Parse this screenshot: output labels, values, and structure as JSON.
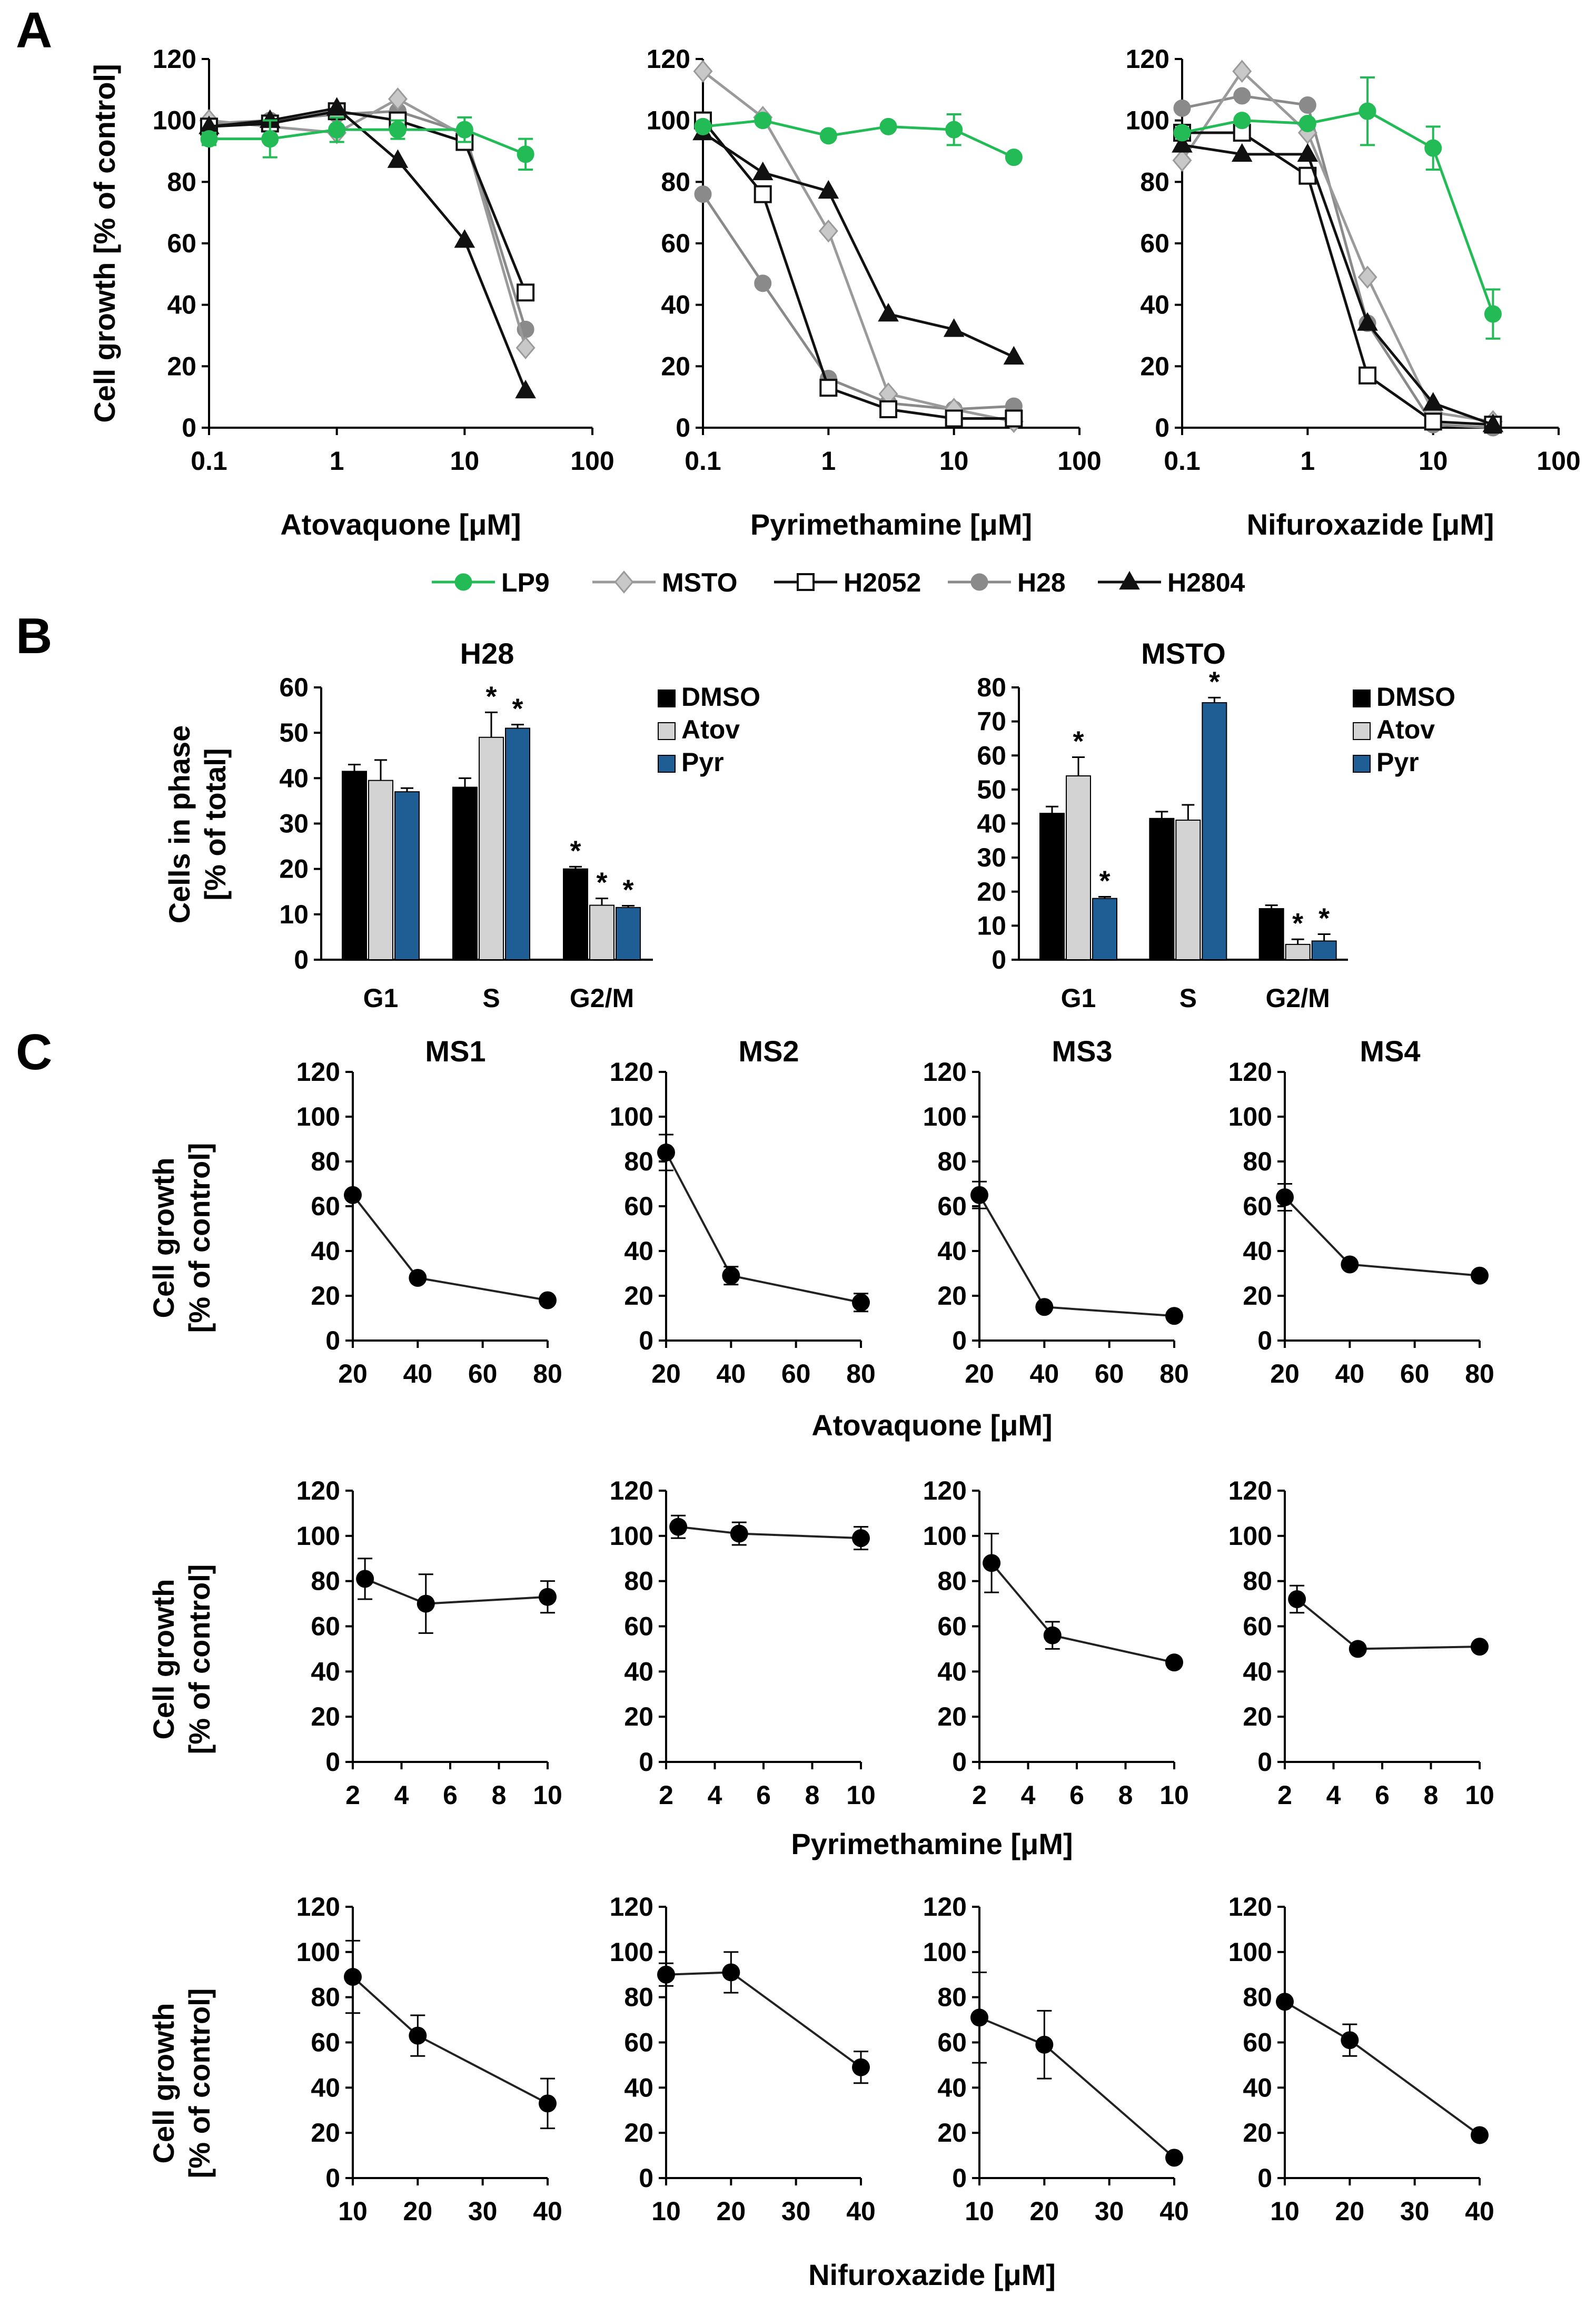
{
  "panels": {
    "A": {
      "label": "A",
      "ylabel": "Cell growth [% of control]",
      "legend": [
        {
          "name": "LP9",
          "color": "#22bb55",
          "marker": "circle",
          "fill": "#22bb55"
        },
        {
          "name": "MSTO",
          "color": "#9a9a9a",
          "marker": "diamond",
          "fill": "#c8c8c8"
        },
        {
          "name": "H2052",
          "color": "#111111",
          "marker": "square",
          "fill": "#ffffff"
        },
        {
          "name": "H28",
          "color": "#8a8a8a",
          "marker": "circle",
          "fill": "#8a8a8a"
        },
        {
          "name": "H2804",
          "color": "#111111",
          "marker": "triangle",
          "fill": "#111111"
        }
      ]
    },
    "B": {
      "label": "B",
      "ylabel_line1": "Cells in phase",
      "ylabel_line2": "[% of total]",
      "legend": [
        {
          "name": "DMSO",
          "color": "#000000"
        },
        {
          "name": "Atov",
          "color": "#d3d3d3"
        },
        {
          "name": "Pyr",
          "color": "#1f5d95"
        }
      ]
    },
    "C": {
      "label": "C",
      "col_titles": [
        "MS1",
        "MS2",
        "MS3",
        "MS4"
      ],
      "ylabel_line1": "Cell growth",
      "ylabel_line2": "[% of control]",
      "row_xlabels": [
        "Atovaquone [μM]",
        "Pyrimethamine [μM]",
        "Nifuroxazide [μM]"
      ]
    }
  },
  "chart_data": [
    {
      "type": "line",
      "panel": "A",
      "xlabel": "Atovaquone [μM]",
      "ylabel": "Cell growth [% of control]",
      "xscale": "log",
      "xlim": [
        0.1,
        100
      ],
      "ylim": [
        0,
        120
      ],
      "xticks": [
        "0.1",
        "1",
        "10",
        "100"
      ],
      "yticks": [
        "0",
        "20",
        "40",
        "60",
        "80",
        "100",
        "120"
      ],
      "x": [
        0.1,
        0.3,
        1,
        3,
        10,
        30
      ],
      "series": [
        {
          "name": "LP9",
          "values": [
            94,
            94,
            97,
            97,
            97,
            89
          ],
          "errors": [
            2,
            6,
            4,
            3,
            4,
            5
          ]
        },
        {
          "name": "MSTO",
          "values": [
            100,
            98,
            96,
            107,
            95,
            26
          ],
          "errors": [
            0,
            0,
            0,
            0,
            0,
            0
          ]
        },
        {
          "name": "H2052",
          "values": [
            98,
            99,
            103,
            100,
            93,
            44
          ],
          "errors": [
            0,
            0,
            0,
            0,
            0,
            0
          ]
        },
        {
          "name": "H28",
          "values": [
            99,
            100,
            102,
            103,
            96,
            32
          ],
          "errors": [
            0,
            0,
            0,
            0,
            0,
            0
          ]
        },
        {
          "name": "H2804",
          "values": [
            98,
            100,
            104,
            87,
            61,
            12
          ],
          "errors": [
            0,
            0,
            0,
            0,
            0,
            0
          ]
        }
      ]
    },
    {
      "type": "line",
      "panel": "A",
      "xlabel": "Pyrimethamine [μM]",
      "xscale": "log",
      "xlim": [
        0.1,
        100
      ],
      "ylim": [
        0,
        120
      ],
      "xticks": [
        "0.1",
        "1",
        "10",
        "100"
      ],
      "yticks": [
        "0",
        "20",
        "40",
        "60",
        "80",
        "100",
        "120"
      ],
      "x": [
        0.1,
        0.3,
        1,
        3,
        10,
        30
      ],
      "series": [
        {
          "name": "LP9",
          "values": [
            98,
            100,
            95,
            98,
            97,
            88
          ],
          "errors": [
            0,
            0,
            0,
            0,
            5,
            0
          ]
        },
        {
          "name": "MSTO",
          "values": [
            116,
            101,
            64,
            11,
            6,
            2
          ],
          "errors": [
            0,
            0,
            0,
            0,
            0,
            0
          ]
        },
        {
          "name": "H2052",
          "values": [
            100,
            76,
            13,
            6,
            3,
            3
          ],
          "errors": [
            0,
            0,
            0,
            0,
            0,
            0
          ]
        },
        {
          "name": "H28",
          "values": [
            76,
            47,
            16,
            8,
            6,
            7
          ],
          "errors": [
            0,
            0,
            0,
            0,
            0,
            0
          ]
        },
        {
          "name": "H2804",
          "values": [
            96,
            83,
            77,
            37,
            32,
            23
          ],
          "errors": [
            0,
            0,
            0,
            0,
            0,
            0
          ]
        }
      ]
    },
    {
      "type": "line",
      "panel": "A",
      "xlabel": "Nifuroxazide [μM]",
      "xscale": "log",
      "xlim": [
        0.1,
        100
      ],
      "ylim": [
        0,
        120
      ],
      "xticks": [
        "0.1",
        "1",
        "10",
        "100"
      ],
      "yticks": [
        "0",
        "20",
        "40",
        "60",
        "80",
        "100",
        "120"
      ],
      "x": [
        0.1,
        0.3,
        1,
        3,
        10,
        30
      ],
      "series": [
        {
          "name": "LP9",
          "values": [
            96,
            100,
            99,
            103,
            91,
            37
          ],
          "errors": [
            0,
            0,
            0,
            11,
            7,
            8
          ]
        },
        {
          "name": "MSTO",
          "values": [
            87,
            116,
            96,
            49,
            5,
            2
          ],
          "errors": [
            0,
            0,
            0,
            0,
            0,
            0
          ]
        },
        {
          "name": "H2052",
          "values": [
            96,
            96,
            82,
            17,
            2,
            1
          ],
          "errors": [
            0,
            0,
            0,
            0,
            0,
            0
          ]
        },
        {
          "name": "H28",
          "values": [
            104,
            108,
            105,
            34,
            1,
            0
          ],
          "errors": [
            0,
            0,
            0,
            0,
            0,
            0
          ]
        },
        {
          "name": "H2804",
          "values": [
            92,
            89,
            89,
            34,
            8,
            1
          ],
          "errors": [
            0,
            0,
            0,
            0,
            0,
            0
          ]
        }
      ]
    },
    {
      "type": "bar",
      "panel": "B",
      "title": "H28",
      "ylabel": "Cells in phase [% of total]",
      "categories": [
        "G1",
        "S",
        "G2/M"
      ],
      "ylim": [
        0,
        60
      ],
      "yticks": [
        "0",
        "10",
        "20",
        "30",
        "40",
        "50",
        "60"
      ],
      "series": [
        {
          "name": "DMSO",
          "values": [
            41.5,
            38,
            20
          ],
          "errors": [
            1.5,
            2,
            0.5
          ]
        },
        {
          "name": "Atov",
          "values": [
            39.5,
            49,
            12
          ],
          "errors": [
            4.5,
            5.5,
            1.5
          ]
        },
        {
          "name": "Pyr",
          "values": [
            37,
            51,
            11.5
          ],
          "errors": [
            0.8,
            0.8,
            0.4
          ]
        }
      ],
      "significance": [
        [
          false,
          false,
          true
        ],
        [
          false,
          true,
          true
        ],
        [
          false,
          true,
          true
        ]
      ]
    },
    {
      "type": "bar",
      "panel": "B",
      "title": "MSTO",
      "categories": [
        "G1",
        "S",
        "G2/M"
      ],
      "ylim": [
        0,
        80
      ],
      "yticks": [
        "0",
        "10",
        "20",
        "30",
        "40",
        "50",
        "60",
        "70",
        "80"
      ],
      "series": [
        {
          "name": "DMSO",
          "values": [
            43,
            41.5,
            15
          ],
          "errors": [
            2,
            2,
            1
          ]
        },
        {
          "name": "Atov",
          "values": [
            54,
            41,
            4.5
          ],
          "errors": [
            5.5,
            4.5,
            1.5
          ]
        },
        {
          "name": "Pyr",
          "values": [
            18,
            75.5,
            5.5
          ],
          "errors": [
            0.5,
            1.5,
            2
          ]
        }
      ],
      "significance": [
        [
          false,
          false,
          false
        ],
        [
          true,
          false,
          true
        ],
        [
          true,
          true,
          true
        ]
      ]
    },
    {
      "type": "line",
      "panel": "C",
      "row": 0,
      "col": 0,
      "title": "MS1",
      "xlabel": "Atovaquone [μM]",
      "xlim": [
        20,
        80
      ],
      "xticks": [
        "20",
        "40",
        "60",
        "80"
      ],
      "ylim": [
        0,
        120
      ],
      "yticks": [
        "0",
        "20",
        "40",
        "60",
        "80",
        "100",
        "120"
      ],
      "x": [
        20,
        40,
        80
      ],
      "values": [
        65,
        28,
        18
      ],
      "errors": [
        2,
        2,
        1
      ]
    },
    {
      "type": "line",
      "panel": "C",
      "row": 0,
      "col": 1,
      "title": "MS2",
      "xlim": [
        20,
        80
      ],
      "xticks": [
        "20",
        "40",
        "60",
        "80"
      ],
      "ylim": [
        0,
        120
      ],
      "yticks": [
        "0",
        "20",
        "40",
        "60",
        "80",
        "100",
        "120"
      ],
      "x": [
        20,
        40,
        80
      ],
      "values": [
        84,
        29,
        17
      ],
      "errors": [
        8,
        4,
        4
      ]
    },
    {
      "type": "line",
      "panel": "C",
      "row": 0,
      "col": 2,
      "title": "MS3",
      "xlim": [
        20,
        80
      ],
      "xticks": [
        "20",
        "40",
        "60",
        "80"
      ],
      "ylim": [
        0,
        120
      ],
      "yticks": [
        "0",
        "20",
        "40",
        "60",
        "80",
        "100",
        "120"
      ],
      "x": [
        20,
        40,
        80
      ],
      "values": [
        65,
        15,
        11
      ],
      "errors": [
        6,
        1,
        1
      ]
    },
    {
      "type": "line",
      "panel": "C",
      "row": 0,
      "col": 3,
      "title": "MS4",
      "xlim": [
        20,
        80
      ],
      "xticks": [
        "20",
        "40",
        "60",
        "80"
      ],
      "ylim": [
        0,
        120
      ],
      "yticks": [
        "0",
        "20",
        "40",
        "60",
        "80",
        "100",
        "120"
      ],
      "x": [
        20,
        40,
        80
      ],
      "values": [
        64,
        34,
        29
      ],
      "errors": [
        6,
        1,
        1
      ]
    },
    {
      "type": "line",
      "panel": "C",
      "row": 1,
      "col": 0,
      "xlabel": "Pyrimethamine [μM]",
      "xlim": [
        2,
        10
      ],
      "xticks": [
        "2",
        "4",
        "6",
        "8",
        "10"
      ],
      "ylim": [
        0,
        120
      ],
      "yticks": [
        "0",
        "20",
        "40",
        "60",
        "80",
        "100",
        "120"
      ],
      "x": [
        2.5,
        5,
        10
      ],
      "values": [
        81,
        70,
        73
      ],
      "errors": [
        9,
        13,
        7
      ]
    },
    {
      "type": "line",
      "panel": "C",
      "row": 1,
      "col": 1,
      "xlim": [
        2,
        10
      ],
      "xticks": [
        "2",
        "4",
        "6",
        "8",
        "10"
      ],
      "ylim": [
        0,
        120
      ],
      "yticks": [
        "0",
        "20",
        "40",
        "60",
        "80",
        "100",
        "120"
      ],
      "x": [
        2.5,
        5,
        10
      ],
      "values": [
        104,
        101,
        99
      ],
      "errors": [
        5,
        5,
        5
      ]
    },
    {
      "type": "line",
      "panel": "C",
      "row": 1,
      "col": 2,
      "xlim": [
        2,
        10
      ],
      "xticks": [
        "2",
        "4",
        "6",
        "8",
        "10"
      ],
      "ylim": [
        0,
        120
      ],
      "yticks": [
        "0",
        "20",
        "40",
        "60",
        "80",
        "100",
        "120"
      ],
      "x": [
        2.5,
        5,
        10
      ],
      "values": [
        88,
        56,
        44
      ],
      "errors": [
        13,
        6,
        2
      ]
    },
    {
      "type": "line",
      "panel": "C",
      "row": 1,
      "col": 3,
      "xlim": [
        2,
        10
      ],
      "xticks": [
        "2",
        "4",
        "6",
        "8",
        "10"
      ],
      "ylim": [
        0,
        120
      ],
      "yticks": [
        "0",
        "20",
        "40",
        "60",
        "80",
        "100",
        "120"
      ],
      "x": [
        2.5,
        5,
        10
      ],
      "values": [
        72,
        50,
        51
      ],
      "errors": [
        6,
        1,
        1
      ]
    },
    {
      "type": "line",
      "panel": "C",
      "row": 2,
      "col": 0,
      "xlabel": "Nifuroxazide [μM]",
      "xlim": [
        10,
        40
      ],
      "xticks": [
        "10",
        "20",
        "30",
        "40"
      ],
      "ylim": [
        0,
        120
      ],
      "yticks": [
        "0",
        "20",
        "40",
        "60",
        "80",
        "100",
        "120"
      ],
      "x": [
        10,
        20,
        40
      ],
      "values": [
        89,
        63,
        33
      ],
      "errors": [
        16,
        9,
        11
      ]
    },
    {
      "type": "line",
      "panel": "C",
      "row": 2,
      "col": 1,
      "xlim": [
        10,
        40
      ],
      "xticks": [
        "10",
        "20",
        "30",
        "40"
      ],
      "ylim": [
        0,
        120
      ],
      "yticks": [
        "0",
        "20",
        "40",
        "60",
        "80",
        "100",
        "120"
      ],
      "x": [
        10,
        20,
        40
      ],
      "values": [
        90,
        91,
        49
      ],
      "errors": [
        5,
        9,
        7
      ]
    },
    {
      "type": "line",
      "panel": "C",
      "row": 2,
      "col": 2,
      "xlim": [
        10,
        40
      ],
      "xticks": [
        "10",
        "20",
        "30",
        "40"
      ],
      "ylim": [
        0,
        120
      ],
      "yticks": [
        "0",
        "20",
        "40",
        "60",
        "80",
        "100",
        "120"
      ],
      "x": [
        10,
        20,
        40
      ],
      "values": [
        71,
        59,
        9
      ],
      "errors": [
        20,
        15,
        1
      ]
    },
    {
      "type": "line",
      "panel": "C",
      "row": 2,
      "col": 3,
      "xlim": [
        10,
        40
      ],
      "xticks": [
        "10",
        "20",
        "30",
        "40"
      ],
      "ylim": [
        0,
        120
      ],
      "yticks": [
        "0",
        "20",
        "40",
        "60",
        "80",
        "100",
        "120"
      ],
      "x": [
        10,
        20,
        40
      ],
      "values": [
        78,
        61,
        19
      ],
      "errors": [
        1,
        7,
        1
      ]
    }
  ]
}
